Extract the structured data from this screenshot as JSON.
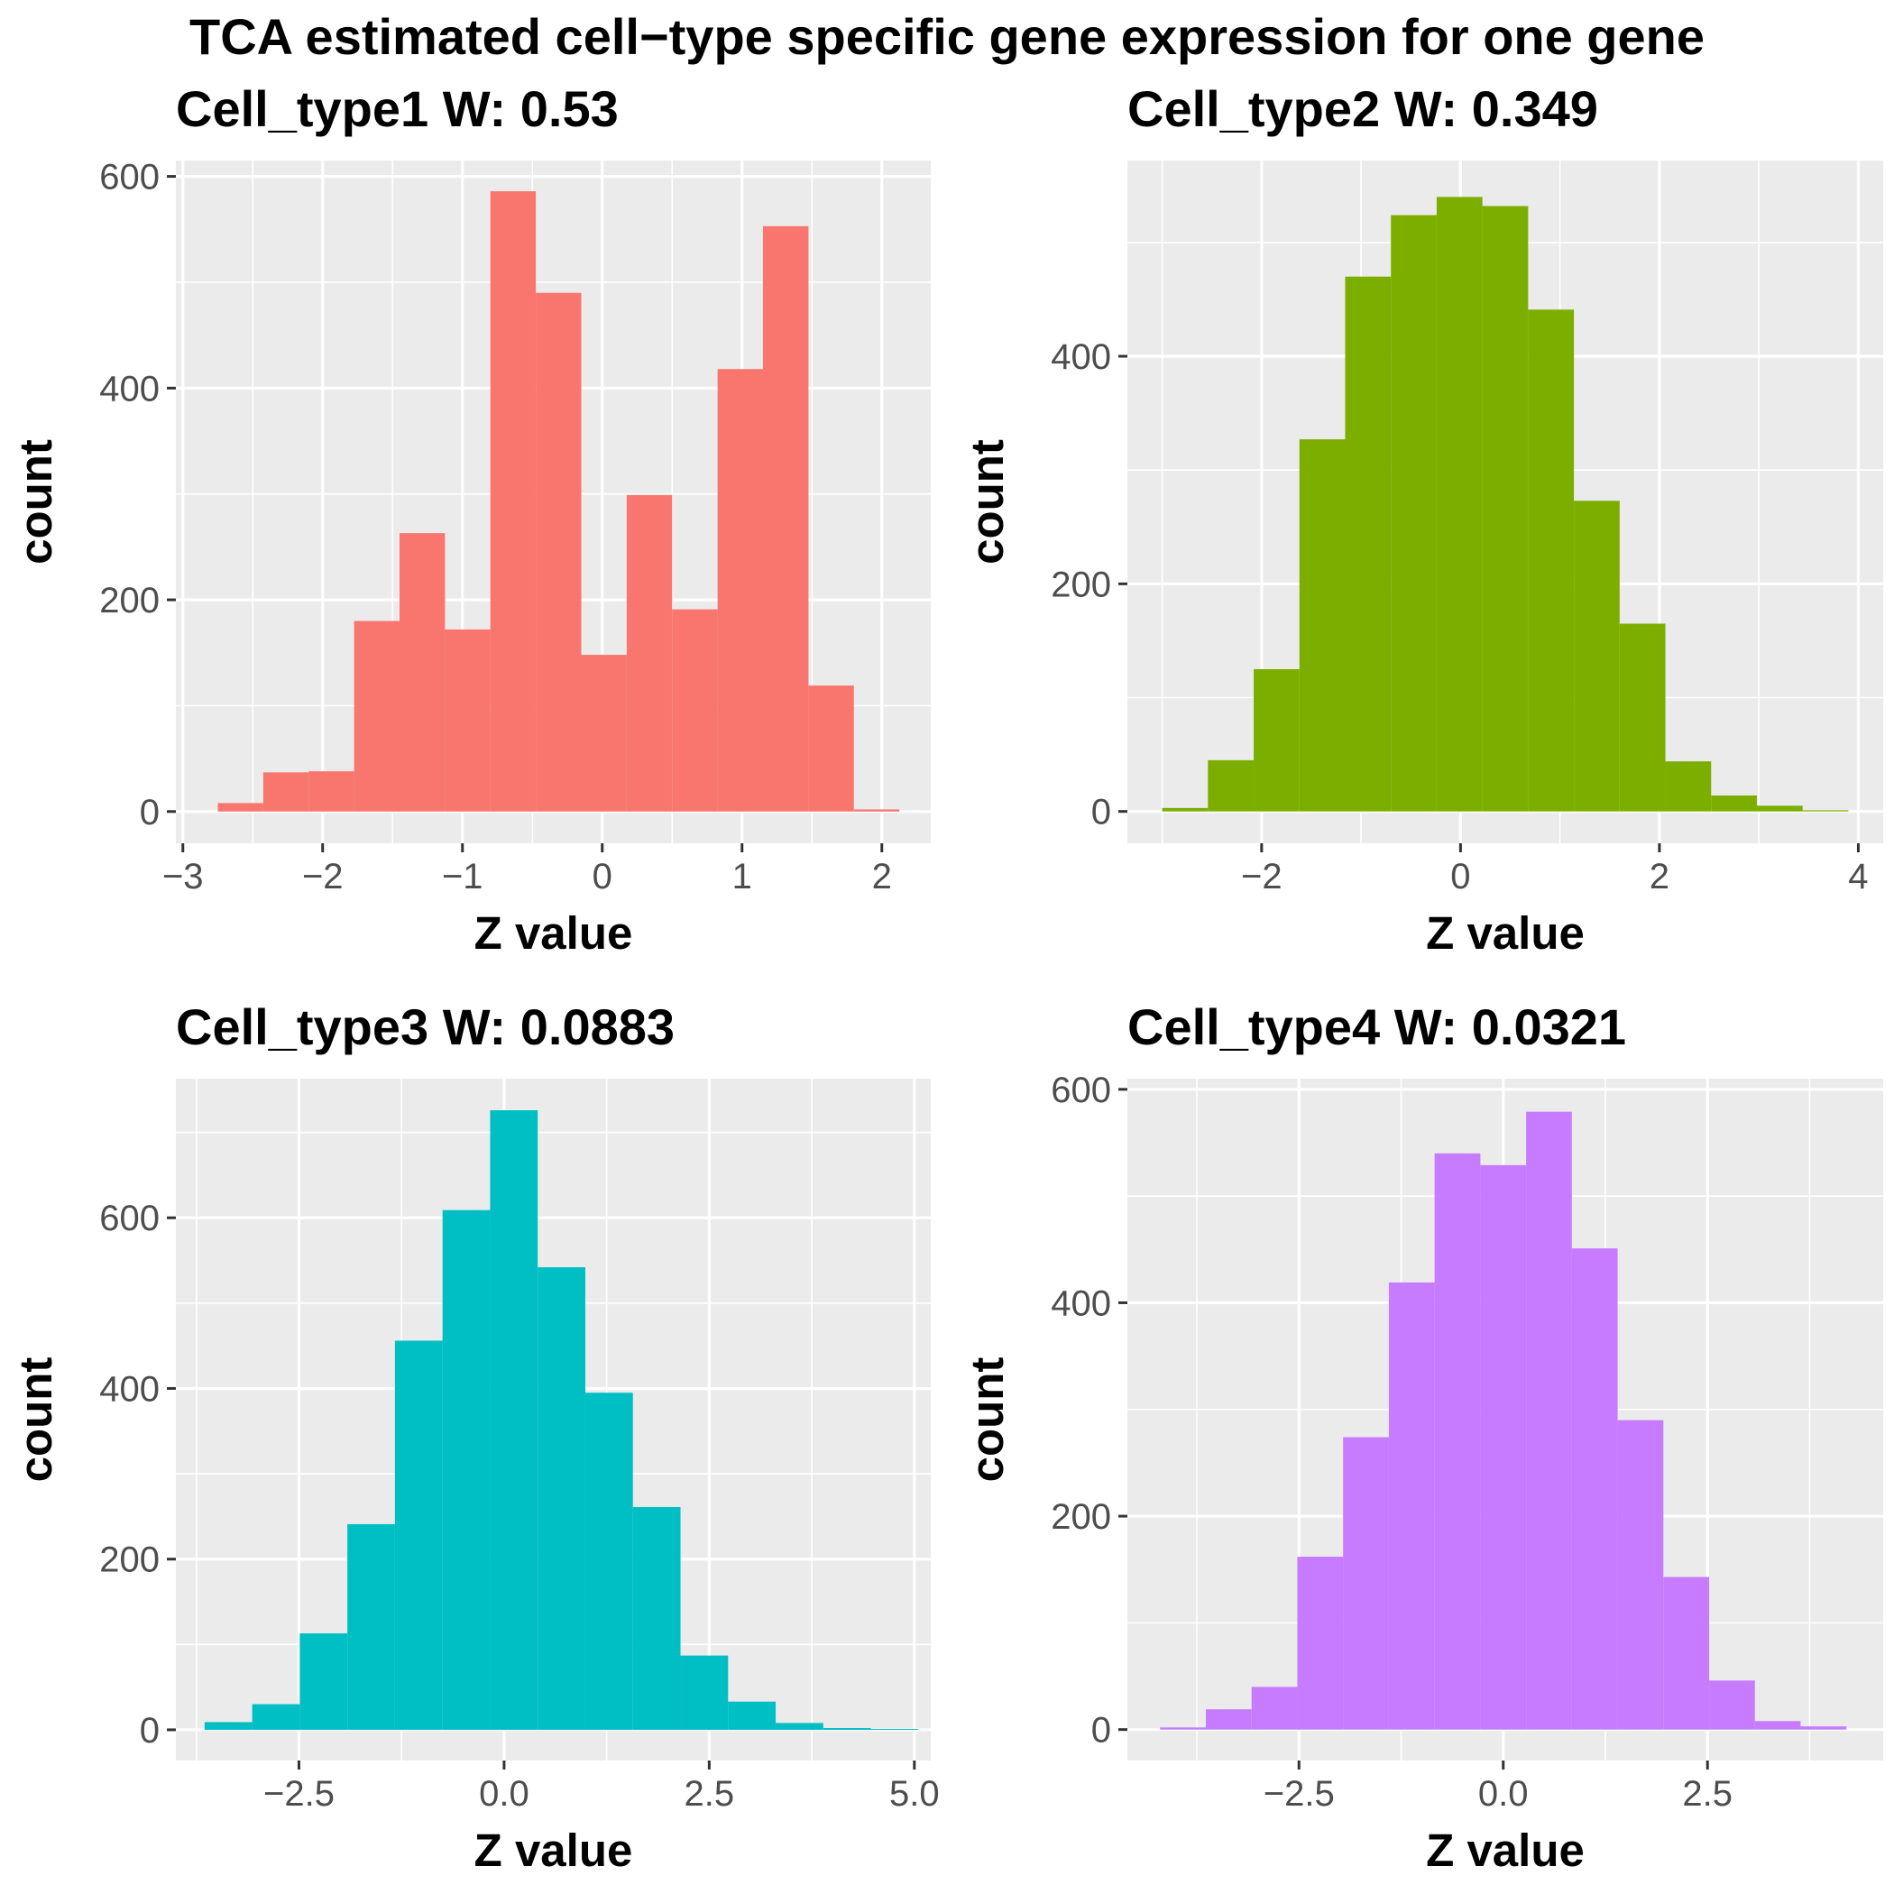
{
  "title": "TCA estimated cell−type specific gene expression for one gene",
  "chart_data": [
    {
      "type": "histogram",
      "title": "Cell_type1  W: 0.53",
      "xlabel": "Z value",
      "ylabel": "count",
      "color": "#F8766D",
      "xlim": [
        -3.05,
        2.35
      ],
      "ylim": [
        -30,
        615
      ],
      "xticks": [
        -3,
        -2,
        -1,
        0,
        1,
        2
      ],
      "xtick_labels": [
        "−3",
        "−2",
        "−1",
        "0",
        "1",
        "2"
      ],
      "yticks": [
        0,
        200,
        400,
        600
      ],
      "ytick_labels": [
        "0",
        "200",
        "400",
        "600"
      ],
      "bin_edges": [
        -2.75,
        -2.425,
        -2.1,
        -1.775,
        -1.45,
        -1.125,
        -0.8,
        -0.475,
        -0.15,
        0.175,
        0.5,
        0.825,
        1.15,
        1.475,
        1.8,
        2.125
      ],
      "values": [
        8,
        37,
        38,
        180,
        263,
        172,
        586,
        490,
        148,
        299,
        191,
        418,
        553,
        119,
        2
      ]
    },
    {
      "type": "histogram",
      "title": "Cell_type2  W: 0.349",
      "xlabel": "Z value",
      "ylabel": "count",
      "color": "#7CAE00",
      "xlim": [
        -3.35,
        4.25
      ],
      "ylim": [
        -28,
        572
      ],
      "xticks": [
        -2,
        0,
        2,
        4
      ],
      "xtick_labels": [
        "−2",
        "0",
        "2",
        "4"
      ],
      "yticks": [
        0,
        200,
        400
      ],
      "ytick_labels": [
        "0",
        "200",
        "400"
      ],
      "bin_edges": [
        -3.0,
        -2.54,
        -2.08,
        -1.62,
        -1.16,
        -0.7,
        -0.24,
        0.22,
        0.68,
        1.14,
        1.6,
        2.06,
        2.52,
        2.98,
        3.44,
        3.9
      ],
      "values": [
        3,
        45,
        125,
        327,
        470,
        524,
        540,
        532,
        441,
        273,
        165,
        44,
        14,
        5,
        1
      ]
    },
    {
      "type": "histogram",
      "title": "Cell_type3  W: 0.0883",
      "xlabel": "Z value",
      "ylabel": "count",
      "color": "#00BFC4",
      "xlim": [
        -4.0,
        5.2
      ],
      "ylim": [
        -36,
        763
      ],
      "xticks": [
        -2.5,
        0.0,
        2.5,
        5.0
      ],
      "xtick_labels": [
        "−2.5",
        "0.0",
        "2.5",
        "5.0"
      ],
      "yticks": [
        0,
        200,
        400,
        600
      ],
      "ytick_labels": [
        "0",
        "200",
        "400",
        "600"
      ],
      "bin_edges": [
        -3.65,
        -3.07,
        -2.49,
        -1.91,
        -1.33,
        -0.75,
        -0.17,
        0.41,
        0.99,
        1.57,
        2.15,
        2.73,
        3.31,
        3.89,
        4.47,
        5.05
      ],
      "values": [
        9,
        30,
        113,
        241,
        456,
        609,
        726,
        542,
        395,
        261,
        87,
        33,
        8,
        2,
        1
      ]
    },
    {
      "type": "histogram",
      "title": "Cell_type4  W: 0.0321",
      "xlabel": "Z value",
      "ylabel": "count",
      "color": "#C77CFF",
      "xlim": [
        -4.6,
        4.65
      ],
      "ylim": [
        -29,
        610
      ],
      "xticks": [
        -2.5,
        0.0,
        2.5
      ],
      "xtick_labels": [
        "−2.5",
        "0.0",
        "2.5"
      ],
      "yticks": [
        0,
        200,
        400,
        600
      ],
      "ytick_labels": [
        "0",
        "200",
        "400",
        "600"
      ],
      "bin_edges": [
        -4.2,
        -3.64,
        -3.08,
        -2.52,
        -1.96,
        -1.4,
        -0.84,
        -0.28,
        0.28,
        0.84,
        1.4,
        1.96,
        2.52,
        3.08,
        3.64,
        4.2
      ],
      "values": [
        2,
        19,
        40,
        162,
        274,
        419,
        540,
        529,
        579,
        451,
        290,
        143,
        46,
        8,
        3
      ]
    }
  ]
}
